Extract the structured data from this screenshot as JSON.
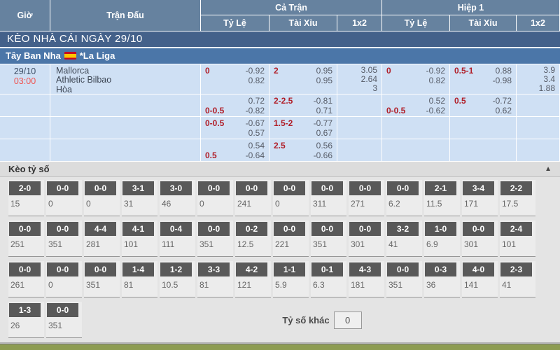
{
  "table_header": {
    "time": "Giờ",
    "match": "Trận Đấu",
    "full_match": "Cả Trận",
    "first_half": "Hiệp 1",
    "rate": "Tỷ Lệ",
    "over_under": "Tài Xỉu",
    "one_x_two": "1x2"
  },
  "banner": {
    "title": "KÈO NHÀ CÁI NGÀY 29/10"
  },
  "league_bar": {
    "country": "Tây Ban Nha",
    "flag_icon": "spain-flag",
    "league": "*La Liga"
  },
  "match": {
    "date": "29/10",
    "time": "03:00",
    "home": "Mallorca",
    "away": "Athletic Bilbao",
    "draw_label": "Hòa"
  },
  "odds_rows": [
    {
      "ft_rate": {
        "l1": [
          "0",
          "-0.92"
        ],
        "l2": [
          "",
          "0.82"
        ]
      },
      "ft_ou": {
        "l1": [
          "2",
          "0.95"
        ],
        "l2": [
          "",
          "0.95"
        ]
      },
      "ft_1x2": [
        "3.05",
        "2.64",
        "3"
      ],
      "h1_rate": {
        "l1": [
          "0",
          "-0.92"
        ],
        "l2": [
          "",
          "0.82"
        ]
      },
      "h1_ou": {
        "l1": [
          "0.5-1",
          "0.88"
        ],
        "l2": [
          "",
          "-0.98"
        ]
      },
      "h1_1x2": [
        "3.9",
        "3.4",
        "1.88"
      ]
    },
    {
      "ft_rate": {
        "l1": [
          "",
          "0.72"
        ],
        "l2": [
          "0-0.5",
          "-0.82"
        ]
      },
      "ft_ou": {
        "l1": [
          "2-2.5",
          "-0.81"
        ],
        "l2": [
          "",
          "0.71"
        ]
      },
      "ft_1x2": [],
      "h1_rate": {
        "l1": [
          "",
          "0.52"
        ],
        "l2": [
          "0-0.5",
          "-0.62"
        ]
      },
      "h1_ou": {
        "l1": [
          "0.5",
          "-0.72"
        ],
        "l2": [
          "",
          "0.62"
        ]
      },
      "h1_1x2": []
    },
    {
      "ft_rate": {
        "l1": [
          "0-0.5",
          "-0.67"
        ],
        "l2": [
          "",
          "0.57"
        ]
      },
      "ft_ou": {
        "l1": [
          "1.5-2",
          "-0.77"
        ],
        "l2": [
          "",
          "0.67"
        ]
      },
      "ft_1x2": [],
      "h1_rate": {
        "l1": [
          "",
          ""
        ],
        "l2": [
          "",
          ""
        ]
      },
      "h1_ou": {
        "l1": [
          "",
          ""
        ],
        "l2": [
          "",
          ""
        ]
      },
      "h1_1x2": []
    },
    {
      "ft_rate": {
        "l1": [
          "",
          "0.54"
        ],
        "l2": [
          "0.5",
          "-0.64"
        ]
      },
      "ft_ou": {
        "l1": [
          "2.5",
          "0.56"
        ],
        "l2": [
          "",
          "-0.66"
        ]
      },
      "ft_1x2": [],
      "h1_rate": {
        "l1": [
          "",
          ""
        ],
        "l2": [
          "",
          ""
        ]
      },
      "h1_ou": {
        "l1": [
          "",
          ""
        ],
        "l2": [
          "",
          ""
        ]
      },
      "h1_1x2": []
    }
  ],
  "score_section": {
    "title": "Kèo tỷ số",
    "collapse_icon": "▲",
    "rows": [
      [
        [
          "2-0",
          "15"
        ],
        [
          "0-0",
          "0"
        ],
        [
          "0-0",
          "0"
        ],
        [
          "3-1",
          "31"
        ],
        [
          "3-0",
          "46"
        ],
        [
          "0-0",
          "0"
        ],
        [
          "0-0",
          "241"
        ],
        [
          "0-0",
          "0"
        ],
        [
          "0-0",
          "311"
        ],
        [
          "0-0",
          "271"
        ],
        [
          "0-0",
          "6.2"
        ],
        [
          "2-1",
          "11.5"
        ],
        [
          "3-4",
          "171"
        ],
        [
          "2-2",
          "17.5"
        ]
      ],
      [
        [
          "0-0",
          "251"
        ],
        [
          "0-0",
          "351"
        ],
        [
          "4-4",
          "281"
        ],
        [
          "4-1",
          "101"
        ],
        [
          "0-4",
          "111"
        ],
        [
          "0-0",
          "351"
        ],
        [
          "0-2",
          "12.5"
        ],
        [
          "0-0",
          "221"
        ],
        [
          "0-0",
          "351"
        ],
        [
          "0-0",
          "301"
        ],
        [
          "3-2",
          "41"
        ],
        [
          "1-0",
          "6.9"
        ],
        [
          "0-0",
          "301"
        ],
        [
          "2-4",
          "101"
        ]
      ],
      [
        [
          "0-0",
          "261"
        ],
        [
          "0-0",
          "0"
        ],
        [
          "0-0",
          "351"
        ],
        [
          "1-4",
          "81"
        ],
        [
          "1-2",
          "10.5"
        ],
        [
          "3-3",
          "81"
        ],
        [
          "4-2",
          "121"
        ],
        [
          "1-1",
          "5.9"
        ],
        [
          "0-1",
          "6.3"
        ],
        [
          "4-3",
          "181"
        ],
        [
          "0-0",
          "351"
        ],
        [
          "0-3",
          "36"
        ],
        [
          "4-0",
          "141"
        ],
        [
          "2-3",
          "41"
        ]
      ],
      [
        [
          "1-3",
          "26"
        ],
        [
          "0-0",
          "351"
        ]
      ]
    ],
    "other_score": {
      "label": "Tỷ số khác",
      "value": "0"
    }
  },
  "colors": {
    "header_blue": "#66829f",
    "banner_navy": "#44618a",
    "league_blue": "#4b76a8",
    "row_light_blue": "#cfe0f4",
    "handicap_red": "#b01e28",
    "time_red": "#ef5350",
    "score_box_grey": "#595959",
    "bottom_olive": "#8d9c52"
  }
}
